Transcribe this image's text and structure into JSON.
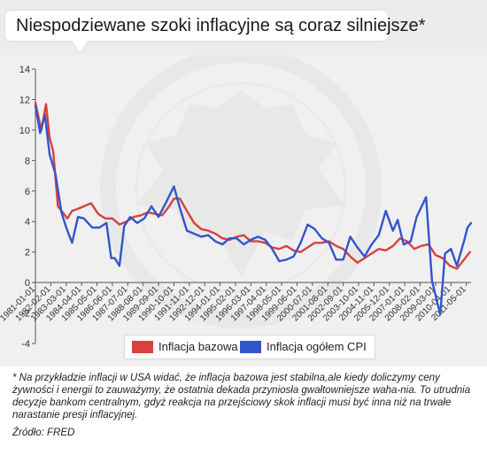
{
  "title": "Niespodziewane szoki inflacyjne są coraz silniejsze*",
  "footnote": "* Na przykładzie inflacji w USA widać, że inflacja bazowa jest stabilna,ale kiedy doliczymy ceny żywności i energii to zauważymy, że ostatnia dekada przyniosła gwałtowniejsze waha-nia. To utrudnia decyzje bankom centralnym, gdyż reakcja na przejściowy skok inflacji musi być inna niż na trwałe narastanie presji inflacyjnej.",
  "source": "Źródło: FRED",
  "chart_data": {
    "type": "line",
    "title": "Niespodziewane szoki inflacyjne są coraz silniejsze*",
    "xlabel": "",
    "ylabel": "",
    "ylim": [
      -4,
      14
    ],
    "yticks": [
      -4,
      -2,
      0,
      2,
      4,
      6,
      8,
      10,
      12,
      14
    ],
    "xlim": [
      "1981-01-01",
      "2011-09-01"
    ],
    "x_tick_labels": [
      "1981-01-01",
      "1982-02-01",
      "1983-03-01",
      "1984-04-01",
      "1985-05-01",
      "1986-06-01",
      "1987-07-01",
      "1988-08-01",
      "1989-09-01",
      "1990-10-01",
      "1991-11-01",
      "1992-12-01",
      "1994-01-01",
      "1995-02-01",
      "1996-03-01",
      "1997-04-01",
      "1998-05-01",
      "1999-06-01",
      "2000-07-01",
      "2001-08-01",
      "2002-09-01",
      "2003-10-01",
      "2004-11-01",
      "2005-12-01",
      "2007-01-01",
      "2008-02-01",
      "2009-03-01",
      "2010-04-01",
      "2011-05-01"
    ],
    "grid": false,
    "legend_position": "bottom",
    "colors": {
      "bazowa": "#d94040",
      "cpi": "#3355cc"
    },
    "series": [
      {
        "name": "Inflacja bazowa",
        "x": [
          "1981-01-01",
          "1981-06-01",
          "1981-10-01",
          "1982-01-01",
          "1982-04-01",
          "1982-08-01",
          "1982-12-01",
          "1983-04-01",
          "1983-08-01",
          "1983-12-01",
          "1984-06-01",
          "1984-12-01",
          "1985-06-01",
          "1985-12-01",
          "1986-06-01",
          "1986-12-01",
          "1987-06-01",
          "1987-12-01",
          "1988-06-01",
          "1988-12-01",
          "1989-06-01",
          "1989-12-01",
          "1990-06-01",
          "1990-10-01",
          "1991-03-01",
          "1991-09-01",
          "1992-03-01",
          "1992-09-01",
          "1993-03-01",
          "1993-09-01",
          "1994-03-01",
          "1994-09-01",
          "1995-03-01",
          "1995-09-01",
          "1996-03-01",
          "1996-09-01",
          "1997-03-01",
          "1997-09-01",
          "1998-03-01",
          "1998-09-01",
          "1999-03-01",
          "1999-09-01",
          "2000-03-01",
          "2000-09-01",
          "2001-03-01",
          "2001-09-01",
          "2002-03-01",
          "2002-09-01",
          "2003-03-01",
          "2003-09-01",
          "2004-03-01",
          "2004-09-01",
          "2005-03-01",
          "2005-09-01",
          "2006-03-01",
          "2006-09-01",
          "2007-03-01",
          "2007-09-01",
          "2008-03-01",
          "2008-09-01",
          "2009-03-01",
          "2009-09-01",
          "2010-03-01",
          "2010-09-01",
          "2011-03-01",
          "2011-08-01"
        ],
        "values": [
          11.8,
          10.0,
          11.7,
          9.5,
          8.6,
          5.0,
          4.6,
          4.2,
          4.7,
          4.8,
          5.0,
          5.2,
          4.5,
          4.2,
          4.2,
          3.8,
          4.0,
          4.3,
          4.4,
          4.6,
          4.5,
          4.4,
          5.0,
          5.5,
          5.5,
          4.7,
          3.9,
          3.5,
          3.4,
          3.2,
          2.9,
          2.8,
          3.0,
          3.1,
          2.7,
          2.7,
          2.6,
          2.3,
          2.2,
          2.4,
          2.1,
          2.0,
          2.3,
          2.6,
          2.6,
          2.7,
          2.4,
          2.2,
          1.7,
          1.3,
          1.6,
          1.9,
          2.2,
          2.1,
          2.4,
          2.9,
          2.7,
          2.2,
          2.4,
          2.5,
          1.8,
          1.6,
          1.1,
          0.9,
          1.5,
          2.0
        ]
      },
      {
        "name": "Inflacja ogółem CPI",
        "x": [
          "1981-01-01",
          "1981-05-01",
          "1981-09-01",
          "1982-01-01",
          "1982-06-01",
          "1982-11-01",
          "1983-03-01",
          "1983-08-01",
          "1984-01-01",
          "1984-06-01",
          "1985-01-01",
          "1985-07-01",
          "1986-01-01",
          "1986-05-01",
          "1986-08-01",
          "1986-12-01",
          "1987-04-01",
          "1987-09-01",
          "1988-03-01",
          "1988-09-01",
          "1989-03-01",
          "1989-09-01",
          "1990-03-01",
          "1990-10-01",
          "1991-03-01",
          "1991-09-01",
          "1992-03-01",
          "1992-09-01",
          "1993-03-01",
          "1993-09-01",
          "1994-03-01",
          "1994-09-01",
          "1995-03-01",
          "1995-09-01",
          "1996-03-01",
          "1996-09-01",
          "1997-03-01",
          "1997-09-01",
          "1998-03-01",
          "1998-09-01",
          "1999-03-01",
          "1999-09-01",
          "2000-03-01",
          "2000-09-01",
          "2001-03-01",
          "2001-09-01",
          "2002-03-01",
          "2002-09-01",
          "2003-03-01",
          "2003-09-01",
          "2004-03-01",
          "2004-09-01",
          "2005-03-01",
          "2005-09-01",
          "2006-03-01",
          "2006-07-01",
          "2006-12-01",
          "2007-06-01",
          "2007-11-01",
          "2008-07-01",
          "2008-12-01",
          "2009-07-01",
          "2009-11-01",
          "2010-04-01",
          "2010-09-01",
          "2011-03-01",
          "2011-06-01",
          "2011-09-01"
        ],
        "values": [
          11.6,
          9.8,
          11.0,
          8.4,
          7.1,
          4.6,
          3.6,
          2.6,
          4.3,
          4.2,
          3.6,
          3.6,
          3.9,
          1.6,
          1.6,
          1.1,
          3.7,
          4.3,
          3.9,
          4.2,
          5.0,
          4.3,
          5.2,
          6.3,
          4.9,
          3.4,
          3.2,
          3.0,
          3.1,
          2.7,
          2.5,
          2.9,
          2.9,
          2.5,
          2.8,
          3.0,
          2.8,
          2.2,
          1.4,
          1.5,
          1.7,
          2.6,
          3.8,
          3.5,
          2.9,
          2.6,
          1.5,
          1.5,
          3.0,
          2.3,
          1.7,
          2.5,
          3.1,
          4.7,
          3.4,
          4.1,
          2.5,
          2.7,
          4.3,
          5.6,
          0.1,
          -2.1,
          1.9,
          2.2,
          1.1,
          2.7,
          3.6,
          3.9
        ]
      }
    ]
  }
}
